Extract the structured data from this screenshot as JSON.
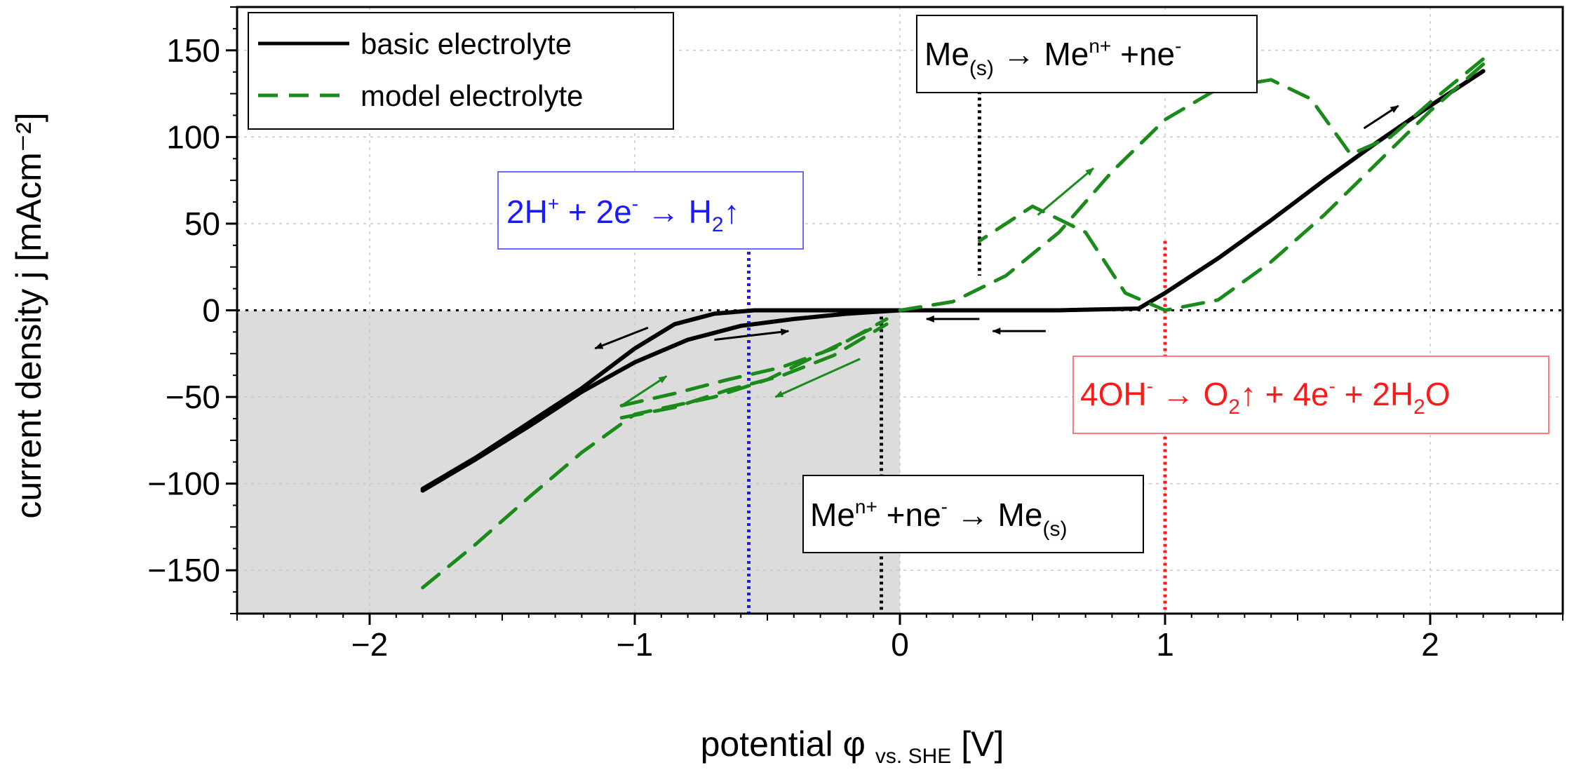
{
  "chart_data": {
    "type": "line",
    "xlabel": {
      "main": "potential φ",
      "sub": "vs. SHE",
      "unit": "[V]"
    },
    "ylabel": "current density j [mAcm⁻²]",
    "xlim": [
      -2.5,
      2.5
    ],
    "ylim": [
      -175,
      175
    ],
    "x_ticks": [
      -2,
      -1,
      0,
      1,
      2
    ],
    "x_tick_labels": [
      "−2",
      "−1",
      "0",
      "1",
      "2"
    ],
    "y_ticks": [
      -150,
      -100,
      -50,
      0,
      50,
      100,
      150
    ],
    "y_tick_labels": [
      "−150",
      "−100",
      "−50",
      "0",
      "50",
      "100",
      "150"
    ],
    "grid": true,
    "legend_position": "top-left",
    "legend": [
      {
        "label": "basic electrolyte",
        "color": "#000000",
        "style": "solid"
      },
      {
        "label": "model electrolyte",
        "color": "#1a8a1a",
        "style": "dashed"
      }
    ],
    "shaded_region": {
      "x": [
        -2.5,
        0
      ],
      "y": [
        -175,
        0
      ],
      "color": "#dcdcdc"
    },
    "reference_lines": [
      {
        "name": "zero-current",
        "axis": "y",
        "value": 0,
        "color": "#000000"
      },
      {
        "name": "hydrogen-evolution",
        "axis": "x",
        "value": -0.57,
        "y_range": [
          -175,
          52
        ],
        "color": "#1a1aff"
      },
      {
        "name": "metal-deposition",
        "axis": "x",
        "value": -0.07,
        "y_range": [
          -175,
          0
        ],
        "color": "#000000"
      },
      {
        "name": "metal-dissolution",
        "axis": "x",
        "value": 0.3,
        "y_range": [
          20,
          130
        ],
        "color": "#000000"
      },
      {
        "name": "oxygen-evolution",
        "axis": "x",
        "value": 1.0,
        "y_range": [
          -175,
          40
        ],
        "color": "#ff1a1a"
      }
    ],
    "series": [
      {
        "name": "basic electrolyte",
        "color": "#000000",
        "style": "solid",
        "x": [
          -1.8,
          -1.6,
          -1.4,
          -1.2,
          -1.0,
          -0.85,
          -0.7,
          -0.55,
          -0.4,
          -0.2,
          0.0,
          0.3,
          0.6,
          0.9,
          1.0,
          1.2,
          1.4,
          1.6,
          1.8,
          2.0,
          2.2
        ],
        "y": [
          -103,
          -85,
          -65,
          -45,
          -22,
          -8,
          -2,
          0,
          0,
          0,
          0,
          0,
          0,
          1,
          10,
          30,
          52,
          75,
          97,
          118,
          138
        ]
      },
      {
        "name": "basic electrolyte (return)",
        "color": "#000000",
        "style": "solid",
        "x": [
          -1.8,
          -1.6,
          -1.4,
          -1.2,
          -1.0,
          -0.8,
          -0.6,
          -0.4,
          -0.2,
          0.0
        ],
        "y": [
          -104,
          -86,
          -67,
          -47,
          -30,
          -17,
          -9,
          -5,
          -2,
          0
        ]
      },
      {
        "name": "model electrolyte",
        "color": "#1a8a1a",
        "style": "dashed",
        "x": [
          -1.8,
          -1.6,
          -1.4,
          -1.2,
          -1.0,
          -0.85,
          -0.7,
          -0.5,
          -0.3,
          -0.1
        ],
        "y": [
          -160,
          -135,
          -108,
          -82,
          -60,
          -55,
          -50,
          -40,
          -25,
          -10
        ]
      },
      {
        "name": "model electrolyte (upper)",
        "color": "#1a8a1a",
        "style": "dashed",
        "x": [
          -1.05,
          -0.85,
          -0.65,
          -0.45,
          -0.25,
          -0.05
        ],
        "y": [
          -55,
          -48,
          -40,
          -33,
          -22,
          -5
        ]
      },
      {
        "name": "model electrolyte (middle)",
        "color": "#1a8a1a",
        "style": "dashed",
        "x": [
          -1.05,
          -0.85,
          -0.65,
          -0.45,
          -0.25,
          -0.05
        ],
        "y": [
          -62,
          -56,
          -46,
          -38,
          -26,
          -8
        ]
      },
      {
        "name": "model electrolyte (anodic sweep)",
        "color": "#1a8a1a",
        "style": "dashed",
        "x": [
          0.0,
          0.2,
          0.4,
          0.6,
          0.8,
          1.0,
          1.2,
          1.4,
          1.55,
          1.7,
          1.85,
          2.0,
          2.2
        ],
        "y": [
          0,
          5,
          20,
          45,
          80,
          110,
          128,
          133,
          122,
          90,
          100,
          120,
          145
        ]
      },
      {
        "name": "model electrolyte (cathodic sweep)",
        "color": "#1a8a1a",
        "style": "dashed",
        "x": [
          2.2,
          2.0,
          1.8,
          1.6,
          1.4,
          1.2,
          1.0,
          0.85,
          0.7,
          0.5,
          0.3
        ],
        "y": [
          142,
          115,
          85,
          55,
          28,
          6,
          0,
          10,
          45,
          60,
          40
        ]
      }
    ],
    "annotations": [
      {
        "name": "hydrogen-label",
        "color": "#1a1aff",
        "text_parts": [
          "2H",
          "+",
          " + 2e",
          "-",
          " → H",
          "2",
          "↑"
        ]
      },
      {
        "name": "dissolution-label",
        "color": "#000000",
        "text_parts": [
          "Me",
          "(s)",
          " → Me",
          "n+",
          " +ne",
          "-"
        ]
      },
      {
        "name": "deposition-label",
        "color": "#000000",
        "text_parts": [
          "Me",
          "n+",
          " +ne",
          "-",
          " → Me",
          "(s)"
        ]
      },
      {
        "name": "oxygen-label",
        "color": "#ff1a1a",
        "text_parts": [
          "4OH",
          "-",
          " → O",
          "2",
          "↑ + 4e",
          "-",
          " + 2H",
          "2",
          "O"
        ]
      }
    ],
    "direction_arrows": [
      {
        "name": "arrow-cathodic-left",
        "color": "#000000",
        "from": [
          -0.95,
          -10
        ],
        "to": [
          -1.15,
          -22
        ]
      },
      {
        "name": "arrow-return-right",
        "color": "#000000",
        "from": [
          -0.7,
          -17
        ],
        "to": [
          -0.42,
          -12
        ]
      },
      {
        "name": "arrow-basic-left",
        "color": "#000000",
        "from": [
          0.3,
          -5
        ],
        "to": [
          0.1,
          -5
        ]
      },
      {
        "name": "arrow-basic-left-2",
        "color": "#000000",
        "from": [
          0.55,
          -12
        ],
        "to": [
          0.35,
          -12
        ]
      },
      {
        "name": "arrow-green-up-1",
        "color": "#1a8a1a",
        "from": [
          -1.05,
          -55
        ],
        "to": [
          -0.88,
          -38
        ]
      },
      {
        "name": "arrow-green-down-1",
        "color": "#1a8a1a",
        "from": [
          -0.15,
          -28
        ],
        "to": [
          -0.47,
          -50
        ]
      },
      {
        "name": "arrow-green-up-2",
        "color": "#1a8a1a",
        "from": [
          0.52,
          55
        ],
        "to": [
          0.73,
          82
        ]
      },
      {
        "name": "arrow-anodic-up",
        "color": "#000000",
        "from": [
          1.75,
          105
        ],
        "to": [
          1.88,
          118
        ]
      }
    ]
  }
}
